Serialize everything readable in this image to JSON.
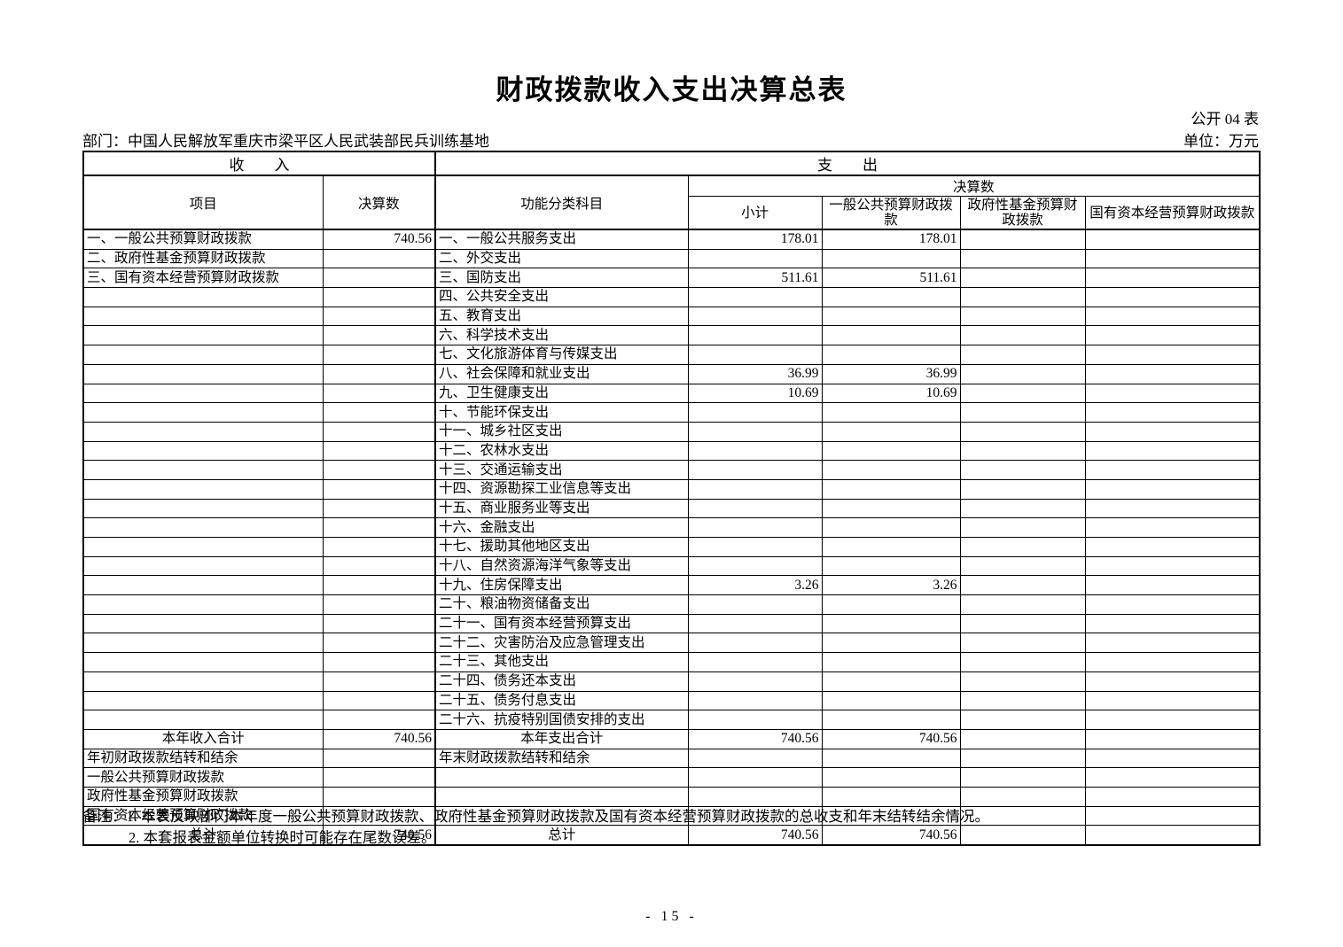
{
  "page": {
    "title": "财政拨款收入支出决算总表",
    "form_number": "公开 04 表",
    "department": "部门：中国人民解放军重庆市梁平区人民武装部民兵训练基地",
    "unit": "单位：万元",
    "page_number": "- 15 -"
  },
  "colors": {
    "text": "#000000",
    "border": "#000000",
    "background": "#ffffff"
  },
  "table": {
    "header": {
      "income_section": "收　　入",
      "expenditure_section": "支　　出",
      "item": "项目",
      "final_figure": "决算数",
      "functional_subject": "功能分类科目",
      "final_figure_group": "决算数",
      "subtotal": "小计",
      "general_public_budget": "一般公共预算财政拨款",
      "government_fund_budget": "政府性基金预算财政拨款",
      "state_capital_budget": "国有资本经营预算财政拨款"
    },
    "rows": [
      {
        "income": "一、一般公共预算财政拨款",
        "income_value": "740.56",
        "expense": "一、一般公共服务支出",
        "subtotal": "178.01",
        "general_public": "178.01",
        "government_fund": "",
        "state_capital": ""
      },
      {
        "income": "二、政府性基金预算财政拨款",
        "income_value": "",
        "expense": "二、外交支出",
        "subtotal": "",
        "general_public": "",
        "government_fund": "",
        "state_capital": ""
      },
      {
        "income": "三、国有资本经营预算财政拨款",
        "income_value": "",
        "expense": "三、国防支出",
        "subtotal": "511.61",
        "general_public": "511.61",
        "government_fund": "",
        "state_capital": ""
      },
      {
        "income": "",
        "income_value": "",
        "expense": "四、公共安全支出",
        "subtotal": "",
        "general_public": "",
        "government_fund": "",
        "state_capital": ""
      },
      {
        "income": "",
        "income_value": "",
        "expense": "五、教育支出",
        "subtotal": "",
        "general_public": "",
        "government_fund": "",
        "state_capital": ""
      },
      {
        "income": "",
        "income_value": "",
        "expense": "六、科学技术支出",
        "subtotal": "",
        "general_public": "",
        "government_fund": "",
        "state_capital": ""
      },
      {
        "income": "",
        "income_value": "",
        "expense": "七、文化旅游体育与传媒支出",
        "subtotal": "",
        "general_public": "",
        "government_fund": "",
        "state_capital": ""
      },
      {
        "income": "",
        "income_value": "",
        "expense": "八、社会保障和就业支出",
        "subtotal": "36.99",
        "general_public": "36.99",
        "government_fund": "",
        "state_capital": ""
      },
      {
        "income": "",
        "income_value": "",
        "expense": "九、卫生健康支出",
        "subtotal": "10.69",
        "general_public": "10.69",
        "government_fund": "",
        "state_capital": ""
      },
      {
        "income": "",
        "income_value": "",
        "expense": "十、节能环保支出",
        "subtotal": "",
        "general_public": "",
        "government_fund": "",
        "state_capital": ""
      },
      {
        "income": "",
        "income_value": "",
        "expense": "十一、城乡社区支出",
        "subtotal": "",
        "general_public": "",
        "government_fund": "",
        "state_capital": ""
      },
      {
        "income": "",
        "income_value": "",
        "expense": "十二、农林水支出",
        "subtotal": "",
        "general_public": "",
        "government_fund": "",
        "state_capital": ""
      },
      {
        "income": "",
        "income_value": "",
        "expense": "十三、交通运输支出",
        "subtotal": "",
        "general_public": "",
        "government_fund": "",
        "state_capital": ""
      },
      {
        "income": "",
        "income_value": "",
        "expense": "十四、资源勘探工业信息等支出",
        "subtotal": "",
        "general_public": "",
        "government_fund": "",
        "state_capital": ""
      },
      {
        "income": "",
        "income_value": "",
        "expense": "十五、商业服务业等支出",
        "subtotal": "",
        "general_public": "",
        "government_fund": "",
        "state_capital": ""
      },
      {
        "income": "",
        "income_value": "",
        "expense": "十六、金融支出",
        "subtotal": "",
        "general_public": "",
        "government_fund": "",
        "state_capital": ""
      },
      {
        "income": "",
        "income_value": "",
        "expense": "十七、援助其他地区支出",
        "subtotal": "",
        "general_public": "",
        "government_fund": "",
        "state_capital": ""
      },
      {
        "income": "",
        "income_value": "",
        "expense": "十八、自然资源海洋气象等支出",
        "subtotal": "",
        "general_public": "",
        "government_fund": "",
        "state_capital": ""
      },
      {
        "income": "",
        "income_value": "",
        "expense": "十九、住房保障支出",
        "subtotal": "3.26",
        "general_public": "3.26",
        "government_fund": "",
        "state_capital": ""
      },
      {
        "income": "",
        "income_value": "",
        "expense": "二十、粮油物资储备支出",
        "subtotal": "",
        "general_public": "",
        "government_fund": "",
        "state_capital": ""
      },
      {
        "income": "",
        "income_value": "",
        "expense": "二十一、国有资本经营预算支出",
        "subtotal": "",
        "general_public": "",
        "government_fund": "",
        "state_capital": ""
      },
      {
        "income": "",
        "income_value": "",
        "expense": "二十二、灾害防治及应急管理支出",
        "subtotal": "",
        "general_public": "",
        "government_fund": "",
        "state_capital": ""
      },
      {
        "income": "",
        "income_value": "",
        "expense": "二十三、其他支出",
        "subtotal": "",
        "general_public": "",
        "government_fund": "",
        "state_capital": ""
      },
      {
        "income": "",
        "income_value": "",
        "expense": "二十四、债务还本支出",
        "subtotal": "",
        "general_public": "",
        "government_fund": "",
        "state_capital": ""
      },
      {
        "income": "",
        "income_value": "",
        "expense": "二十五、债务付息支出",
        "subtotal": "",
        "general_public": "",
        "government_fund": "",
        "state_capital": ""
      },
      {
        "income": "",
        "income_value": "",
        "expense": "二十六、抗疫特别国债安排的支出",
        "subtotal": "",
        "general_public": "",
        "government_fund": "",
        "state_capital": ""
      },
      {
        "income": "本年收入合计",
        "income_align": "c",
        "income_value": "740.56",
        "expense": "本年支出合计",
        "expense_align": "c",
        "subtotal": "740.56",
        "general_public": "740.56",
        "government_fund": "",
        "state_capital": ""
      },
      {
        "income": "年初财政拨款结转和结余",
        "income_value": "",
        "expense": "年末财政拨款结转和结余",
        "subtotal": "",
        "general_public": "",
        "government_fund": "",
        "state_capital": ""
      },
      {
        "income": "一般公共预算财政拨款",
        "income_align": "ind",
        "income_value": "",
        "expense": "",
        "subtotal": "",
        "general_public": "",
        "government_fund": "",
        "state_capital": ""
      },
      {
        "income": "政府性基金预算财政拨款",
        "income_align": "ind",
        "income_value": "",
        "expense": "",
        "subtotal": "",
        "general_public": "",
        "government_fund": "",
        "state_capital": ""
      },
      {
        "income": "国有资本经营预算财政拨款",
        "income_align": "ind",
        "income_value": "",
        "expense": "",
        "subtotal": "",
        "general_public": "",
        "government_fund": "",
        "state_capital": ""
      },
      {
        "income": "总计",
        "income_align": "c",
        "income_value": "740.56",
        "expense": "总计",
        "expense_align": "c",
        "subtotal": "740.56",
        "general_public": "740.56",
        "government_fund": "",
        "state_capital": ""
      }
    ]
  },
  "notes": {
    "label": "备注：",
    "items": [
      "1. 本表反映部门本年度一般公共预算财政拨款、政府性基金预算财政拨款及国有资本经营预算财政拨款的总收支和年末结转结余情况。",
      "2. 本套报表金额单位转换时可能存在尾数误差。"
    ]
  }
}
